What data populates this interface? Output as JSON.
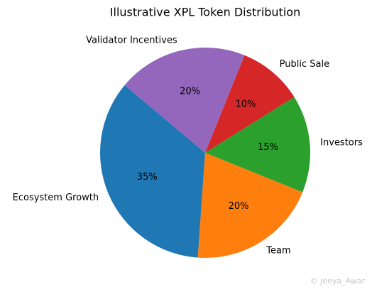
{
  "chart_data": {
    "type": "pie",
    "title": "Illustrative XPL Token Distribution",
    "categories": [
      "Ecosystem Growth",
      "Team",
      "Investors",
      "Public Sale",
      "Validator Incentives"
    ],
    "values": [
      35,
      20,
      15,
      10,
      20
    ],
    "value_labels": [
      "35%",
      "20%",
      "15%",
      "10%",
      "20%"
    ],
    "colors": [
      "#1f77b4",
      "#ff7f0e",
      "#2ca02c",
      "#d62728",
      "#9467bd"
    ],
    "start_angle": 140,
    "counterclockwise": true,
    "watermark": "© Jeeya_Awar"
  }
}
